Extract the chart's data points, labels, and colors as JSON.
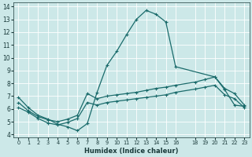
{
  "xlabel": "Humidex (Indice chaleur)",
  "bg_color": "#cce8e8",
  "line_color": "#1a6b6b",
  "xlim": [
    -0.5,
    23.5
  ],
  "ylim": [
    3.8,
    14.3
  ],
  "yticks": [
    4,
    5,
    6,
    7,
    8,
    9,
    10,
    11,
    12,
    13,
    14
  ],
  "xticks": [
    0,
    1,
    2,
    3,
    4,
    5,
    6,
    7,
    8,
    9,
    10,
    11,
    12,
    13,
    14,
    15,
    16,
    18,
    19,
    20,
    21,
    22,
    23
  ],
  "line1_x": [
    0,
    1,
    2,
    3,
    4,
    5,
    6,
    7,
    8,
    9,
    10,
    11,
    12,
    13,
    14,
    15,
    16,
    20,
    21,
    22,
    23
  ],
  "line1_y": [
    6.9,
    6.1,
    5.5,
    5.2,
    4.8,
    4.6,
    4.3,
    4.85,
    7.3,
    9.4,
    10.5,
    11.8,
    13.0,
    13.7,
    13.4,
    12.8,
    9.3,
    8.5,
    7.5,
    6.3,
    6.2
  ],
  "line2_x": [
    0,
    1,
    2,
    3,
    4,
    5,
    6,
    7,
    8,
    9,
    10,
    11,
    12,
    13,
    14,
    15,
    16,
    18,
    19,
    20,
    21,
    22,
    23
  ],
  "line2_y": [
    6.5,
    5.85,
    5.4,
    5.15,
    5.0,
    5.2,
    5.5,
    7.2,
    6.8,
    7.0,
    7.1,
    7.2,
    7.3,
    7.45,
    7.6,
    7.7,
    7.85,
    8.1,
    8.3,
    8.5,
    7.6,
    7.2,
    6.3
  ],
  "line3_x": [
    0,
    1,
    2,
    3,
    4,
    5,
    6,
    7,
    8,
    9,
    10,
    11,
    12,
    13,
    14,
    15,
    16,
    18,
    19,
    20,
    21,
    22,
    23
  ],
  "line3_y": [
    6.1,
    5.75,
    5.25,
    4.9,
    4.75,
    4.95,
    5.25,
    6.5,
    6.3,
    6.5,
    6.6,
    6.7,
    6.8,
    6.9,
    7.0,
    7.1,
    7.3,
    7.55,
    7.7,
    7.85,
    7.1,
    6.8,
    6.1
  ]
}
